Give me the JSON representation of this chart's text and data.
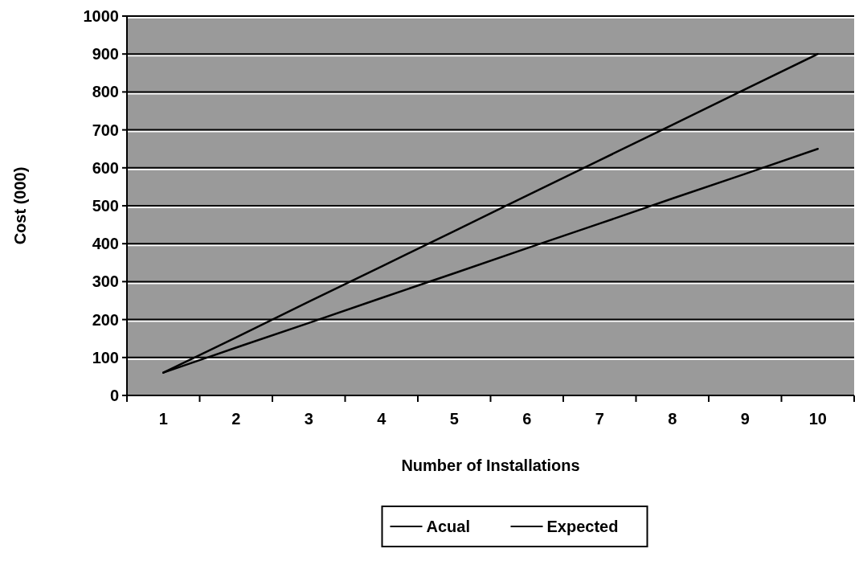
{
  "chart_data": {
    "type": "line",
    "xlabel": "Number of Installations",
    "ylabel": "Cost (000)",
    "categories": [
      "1",
      "2",
      "3",
      "4",
      "5",
      "6",
      "7",
      "8",
      "9",
      "10"
    ],
    "series": [
      {
        "name": "Acual",
        "color": "#000000",
        "values": [
          60,
          153,
          247,
          340,
          433,
          527,
          620,
          713,
          807,
          900
        ]
      },
      {
        "name": "Expected",
        "color": "#000000",
        "values": [
          60,
          126,
          191,
          257,
          322,
          388,
          453,
          519,
          584,
          650
        ]
      }
    ],
    "ylim": [
      0,
      1000
    ],
    "yticks": [
      0,
      100,
      200,
      300,
      400,
      500,
      600,
      700,
      800,
      900,
      1000
    ],
    "grid": "y",
    "legend": "bottom",
    "marker": "none",
    "line_style": "solid"
  }
}
